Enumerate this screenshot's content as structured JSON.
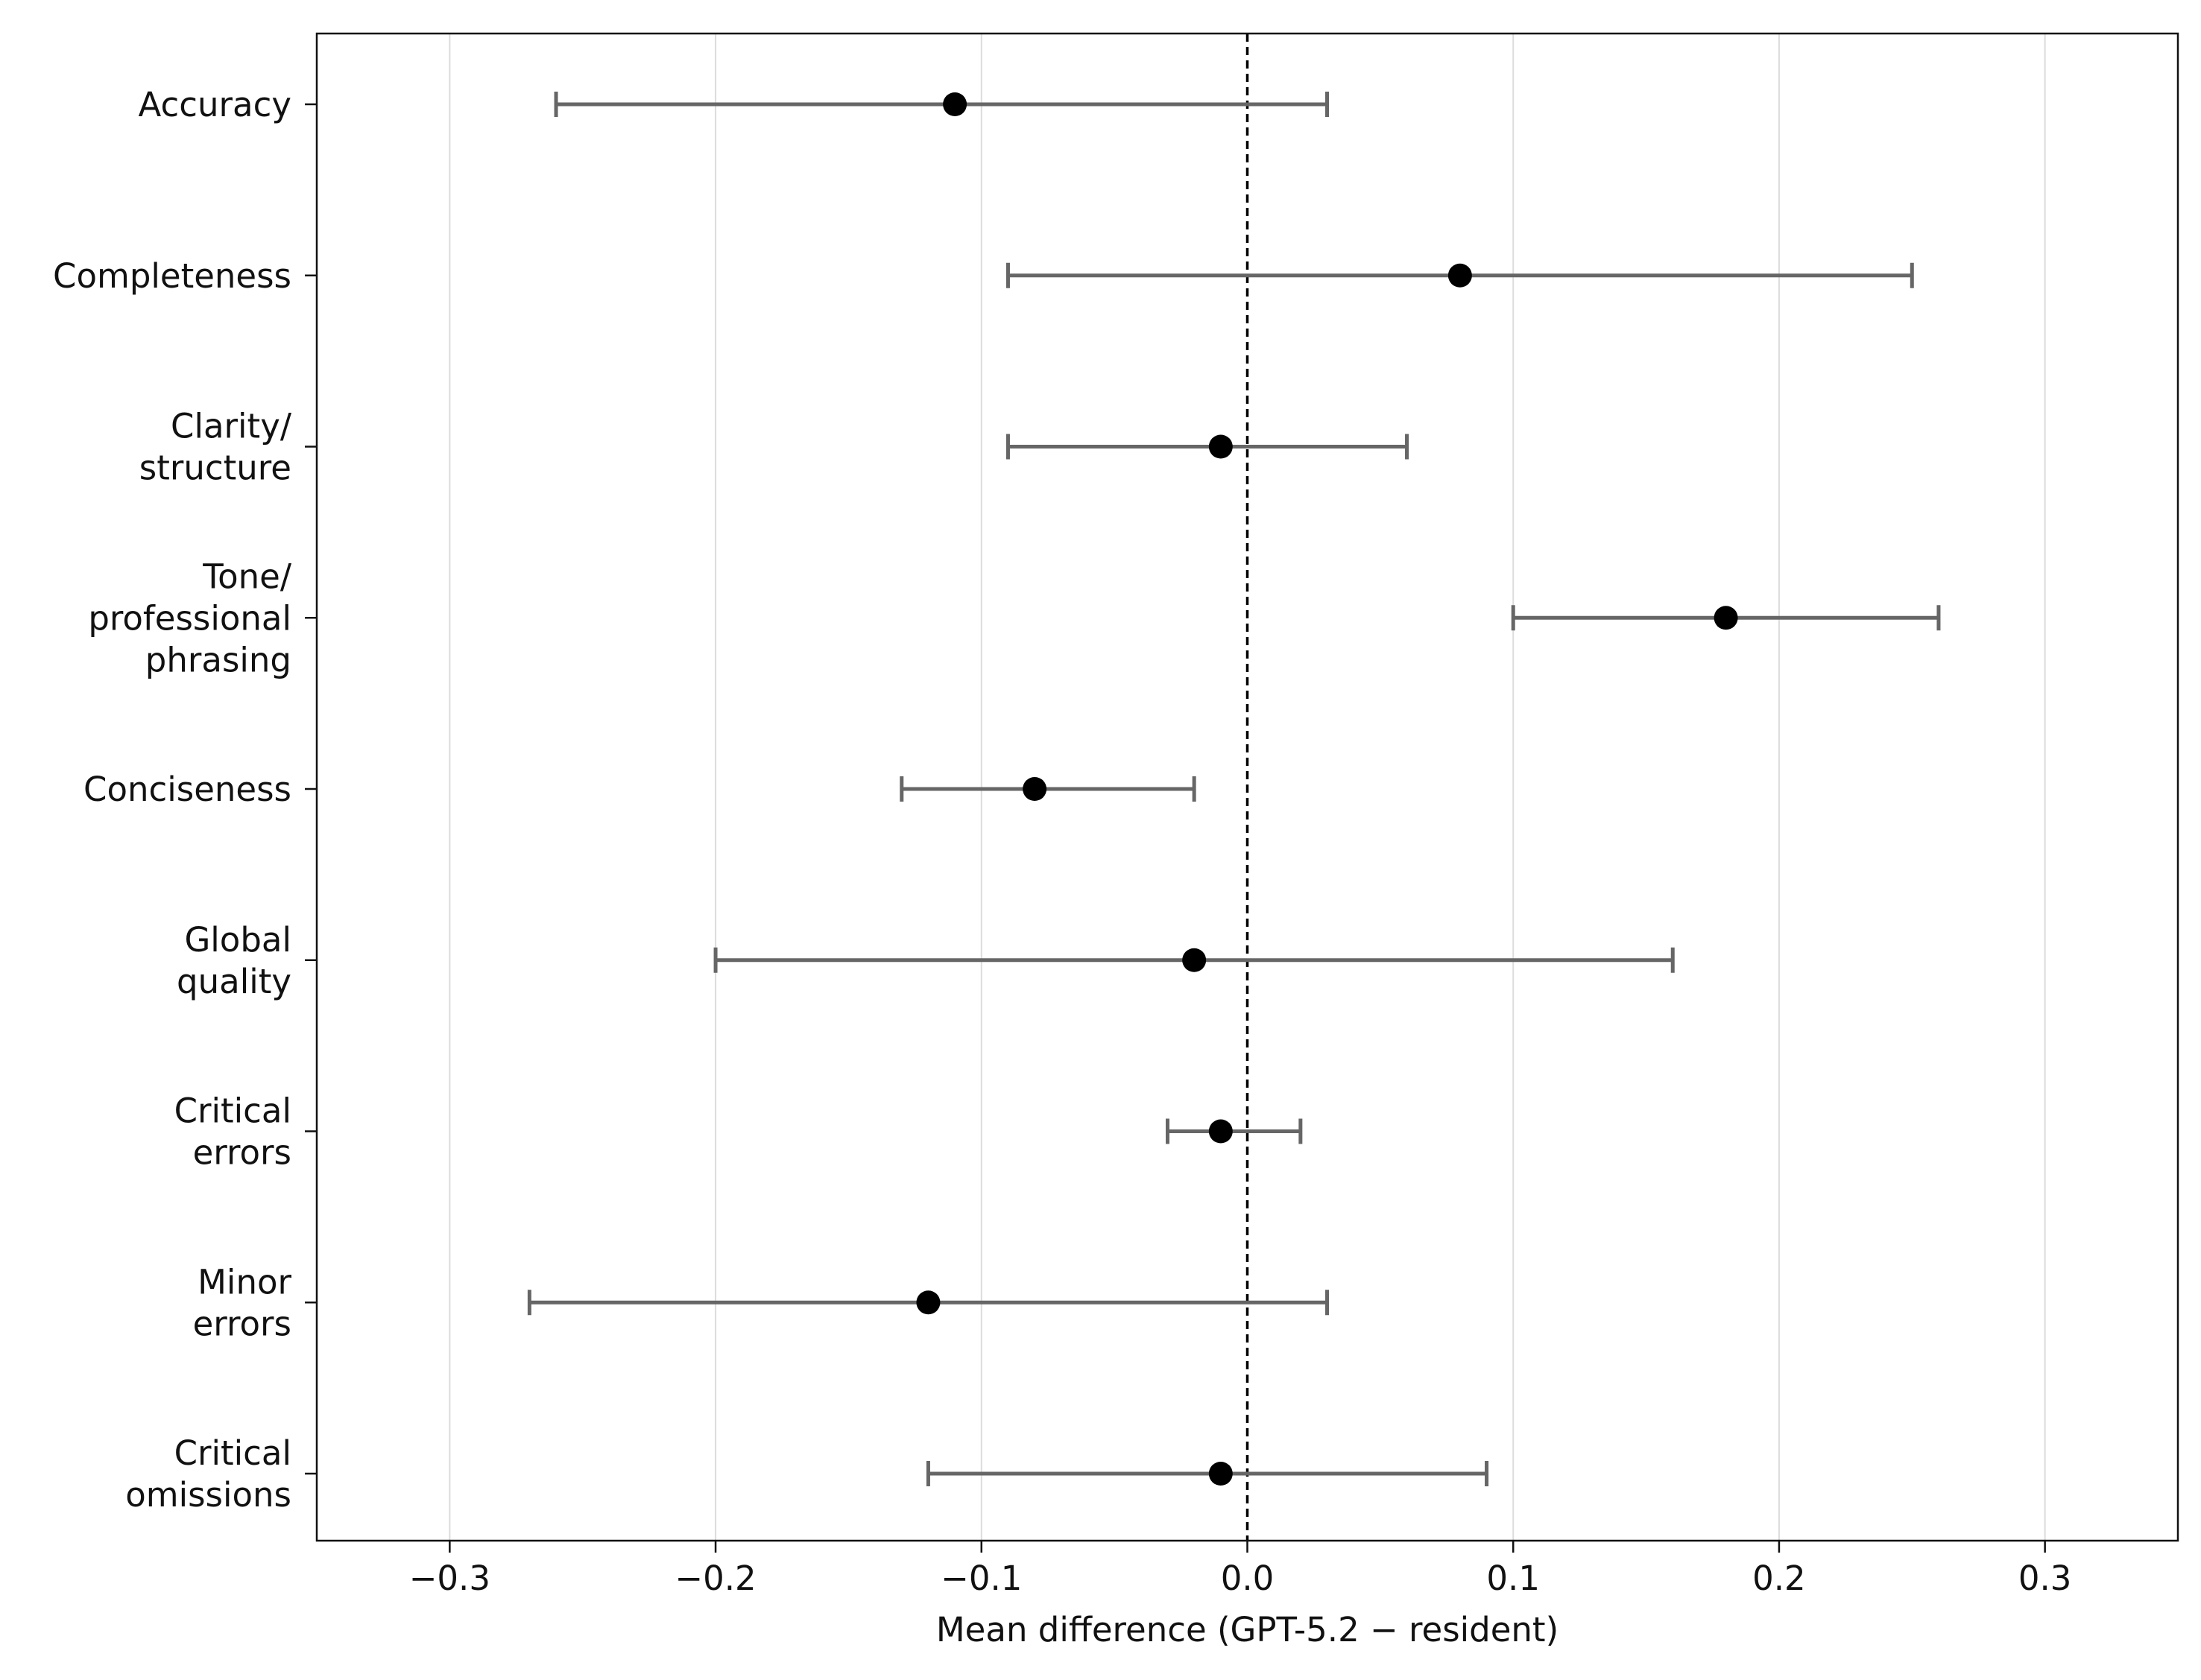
{
  "chart_data": {
    "type": "forest",
    "title": "",
    "xlabel": "Mean difference (GPT-5.2 − resident)",
    "ylabel": "",
    "xlim": [
      -0.35,
      0.35
    ],
    "xticks": [
      -0.3,
      -0.2,
      -0.1,
      0.0,
      0.1,
      0.2,
      0.3
    ],
    "xtick_labels": [
      "−0.3",
      "−0.2",
      "−0.1",
      "0.0",
      "0.1",
      "0.2",
      "0.3"
    ],
    "grid": "vertical",
    "reference_line": 0.0,
    "colors": {
      "point": "#000000",
      "interval": "#666666",
      "grid": "#dcdcdc",
      "reference": "#000000"
    },
    "categories": [
      {
        "label_lines": [
          "Accuracy"
        ],
        "mean": -0.11,
        "ci": [
          -0.26,
          0.03
        ]
      },
      {
        "label_lines": [
          "Completeness"
        ],
        "mean": 0.08,
        "ci": [
          -0.09,
          0.25
        ]
      },
      {
        "label_lines": [
          "Clarity/",
          "structure"
        ],
        "mean": -0.01,
        "ci": [
          -0.09,
          0.06
        ]
      },
      {
        "label_lines": [
          "Tone/",
          "professional",
          "phrasing"
        ],
        "mean": 0.18,
        "ci": [
          0.1,
          0.26
        ]
      },
      {
        "label_lines": [
          "Conciseness"
        ],
        "mean": -0.08,
        "ci": [
          -0.13,
          -0.02
        ]
      },
      {
        "label_lines": [
          "Global",
          "quality"
        ],
        "mean": -0.02,
        "ci": [
          -0.2,
          0.16
        ]
      },
      {
        "label_lines": [
          "Critical",
          "errors"
        ],
        "mean": -0.01,
        "ci": [
          -0.03,
          0.02
        ]
      },
      {
        "label_lines": [
          "Minor",
          "errors"
        ],
        "mean": -0.12,
        "ci": [
          -0.27,
          0.03
        ]
      },
      {
        "label_lines": [
          "Critical",
          "omissions"
        ],
        "mean": -0.01,
        "ci": [
          -0.12,
          0.09
        ]
      }
    ]
  }
}
